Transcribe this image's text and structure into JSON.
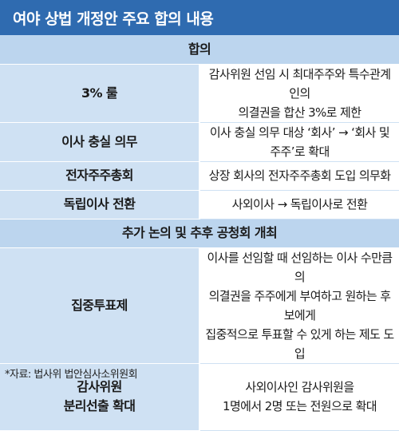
{
  "title": "여야 상법 개정안 주요 합의 내용",
  "sections": [
    {
      "header": "합의",
      "rows": [
        {
          "label": "3% 룰",
          "lines": [
            "감사위원 선임 시 최대주주와 특수관계인의",
            "의결권을 합산 3%로 제한"
          ]
        },
        {
          "label": "이사 충실 의무",
          "lines": [
            "이사 충실 의무 대상 ‘회사’ → ‘회사 및 주주’로 확대"
          ]
        },
        {
          "label": "전자주주총회",
          "lines": [
            "상장 회사의 전자주주총회 도입 의무화"
          ]
        },
        {
          "label": "독립이사 전환",
          "lines": [
            "사외이사 → 독립이사로 전환"
          ]
        }
      ]
    },
    {
      "header": "추가 논의 및 추후 공청회 개최",
      "rows": [
        {
          "label": "집중투표제",
          "lines": [
            "이사를 선임할 때 선임하는 이사 수만큼의",
            "의결권을 주주에게 부여하고 원하는 후보에게",
            "집중적으로 투표할 수 있게 하는 제도 도입"
          ]
        },
        {
          "label_lines": [
            "감사위원",
            "분리선출 확대"
          ],
          "lines": [
            "사외이사인 감사위원을",
            "1명에서 2명 또는 전원으로 확대"
          ]
        }
      ]
    }
  ],
  "source": "*자료: 법사위 법안심사소위원회"
}
